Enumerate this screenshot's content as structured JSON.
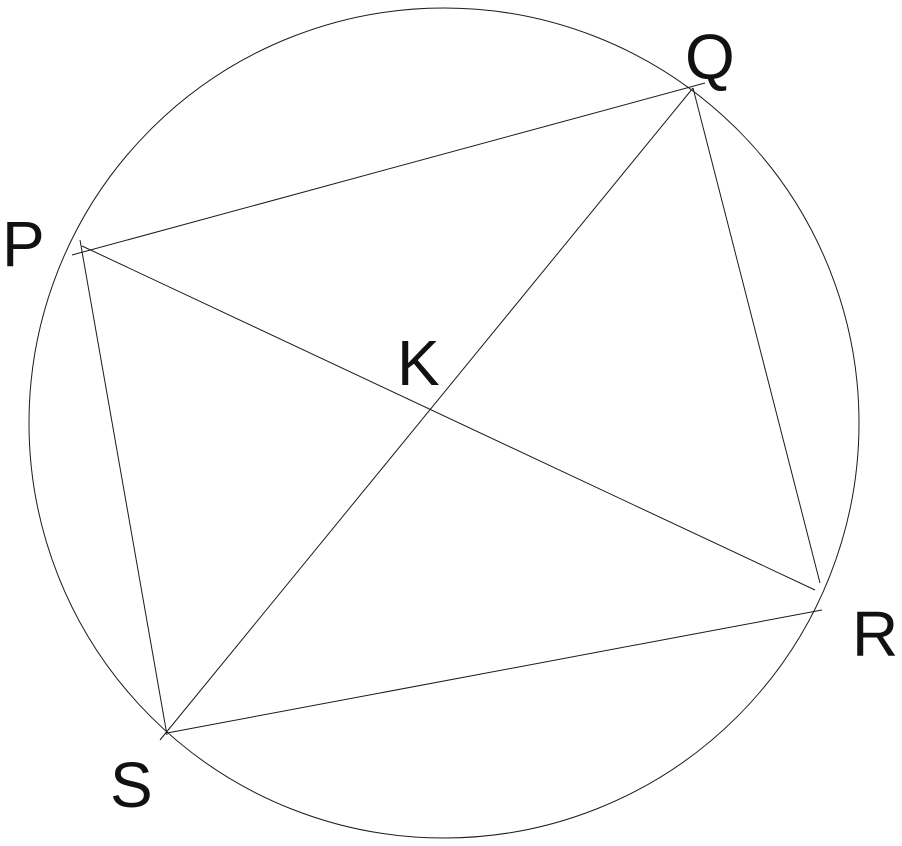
{
  "points": {
    "P": "P",
    "Q": "Q",
    "R": "R",
    "S": "S",
    "K": "K"
  }
}
